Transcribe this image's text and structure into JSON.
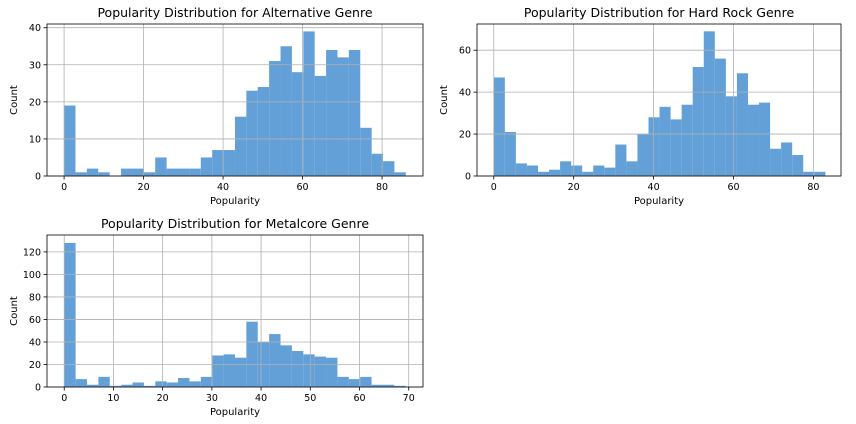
{
  "chart_data": [
    {
      "type": "bar",
      "title": "Popularity Distribution for Alternative Genre",
      "xlabel": "Popularity",
      "ylabel": "Count",
      "xlim": [
        -4.3,
        90.3
      ],
      "ylim": [
        0,
        41
      ],
      "xticks": [
        0,
        20,
        40,
        60,
        80
      ],
      "yticks": [
        0,
        10,
        20,
        30,
        40
      ],
      "grid": true,
      "bar_color": "#5b9bd5",
      "bin_start": 0,
      "bin_width": 2.866,
      "values": [
        19,
        1,
        2,
        1,
        0,
        2,
        2,
        1,
        5,
        2,
        2,
        2,
        5,
        7,
        7,
        16,
        23,
        24,
        31,
        35,
        28,
        39,
        27,
        34,
        32,
        34,
        13,
        6,
        4,
        1
      ]
    },
    {
      "type": "bar",
      "title": "Popularity Distribution for Hard Rock Genre",
      "xlabel": "Popularity",
      "ylabel": "Count",
      "xlim": [
        -4.2,
        86.9
      ],
      "ylim": [
        0,
        72.5
      ],
      "xticks": [
        0,
        20,
        40,
        60,
        80
      ],
      "yticks": [
        0,
        20,
        40,
        60
      ],
      "grid": true,
      "bar_color": "#5b9bd5",
      "bin_start": 0,
      "bin_width": 2.766,
      "values": [
        47,
        21,
        6,
        5,
        2,
        3,
        7,
        5,
        2,
        5,
        4,
        15,
        7,
        20,
        28,
        33,
        27,
        34,
        52,
        69,
        56,
        38,
        49,
        34,
        35,
        13,
        16,
        10,
        2,
        2
      ]
    },
    {
      "type": "bar",
      "title": "Popularity Distribution for Metalcore Genre",
      "xlabel": "Popularity",
      "ylabel": "Count",
      "xlim": [
        -3.5,
        72.9
      ],
      "ylim": [
        0,
        135
      ],
      "xticks": [
        0,
        10,
        20,
        30,
        40,
        50,
        60,
        70
      ],
      "yticks": [
        0,
        20,
        40,
        60,
        80,
        100,
        120
      ],
      "grid": true,
      "bar_color": "#5b9bd5",
      "bin_start": 0,
      "bin_width": 2.313,
      "values": [
        128,
        7,
        2,
        9,
        1,
        2,
        4,
        1,
        5,
        4,
        8,
        5,
        9,
        28,
        29,
        26,
        58,
        40,
        47,
        37,
        32,
        29,
        27,
        26,
        9,
        7,
        9,
        2,
        2,
        1
      ]
    }
  ]
}
